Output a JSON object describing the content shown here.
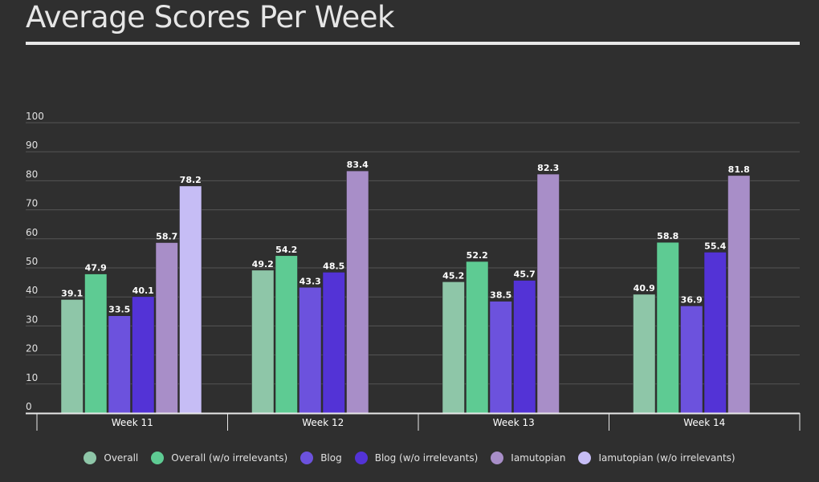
{
  "title": "Average Scores Per Week",
  "chart_data": {
    "type": "bar",
    "title": "Average Scores Per Week",
    "xlabel": "",
    "ylabel": "",
    "ylim": [
      0,
      100
    ],
    "yticks": [
      "0",
      "10",
      "20",
      "30",
      "40",
      "50",
      "60",
      "70",
      "80",
      "90",
      "100"
    ],
    "grid": true,
    "legend_position": "bottom",
    "categories": [
      "Week 11",
      "Week 12",
      "Week 13",
      "Week 14"
    ],
    "series": [
      {
        "name": "Overall",
        "color": "#8ec6a8",
        "values": [
          39.1,
          49.2,
          45.2,
          40.9
        ]
      },
      {
        "name": "Overall (w/o irrelevants)",
        "color": "#5ecb93",
        "values": [
          47.9,
          54.2,
          52.2,
          58.8
        ]
      },
      {
        "name": "Blog",
        "color": "#6c52dd",
        "values": [
          33.5,
          43.3,
          38.5,
          36.9
        ]
      },
      {
        "name": "Blog (w/o irrelevants)",
        "color": "#5333d6",
        "values": [
          40.1,
          48.5,
          45.7,
          55.4
        ]
      },
      {
        "name": "Iamutopian",
        "color": "#a88ec8",
        "values": [
          58.7,
          83.4,
          82.3,
          81.8
        ]
      },
      {
        "name": "Iamutopian (w/o irrelevants)",
        "color": "#c6bdf5",
        "values": [
          78.2,
          null,
          null,
          null
        ]
      }
    ]
  }
}
